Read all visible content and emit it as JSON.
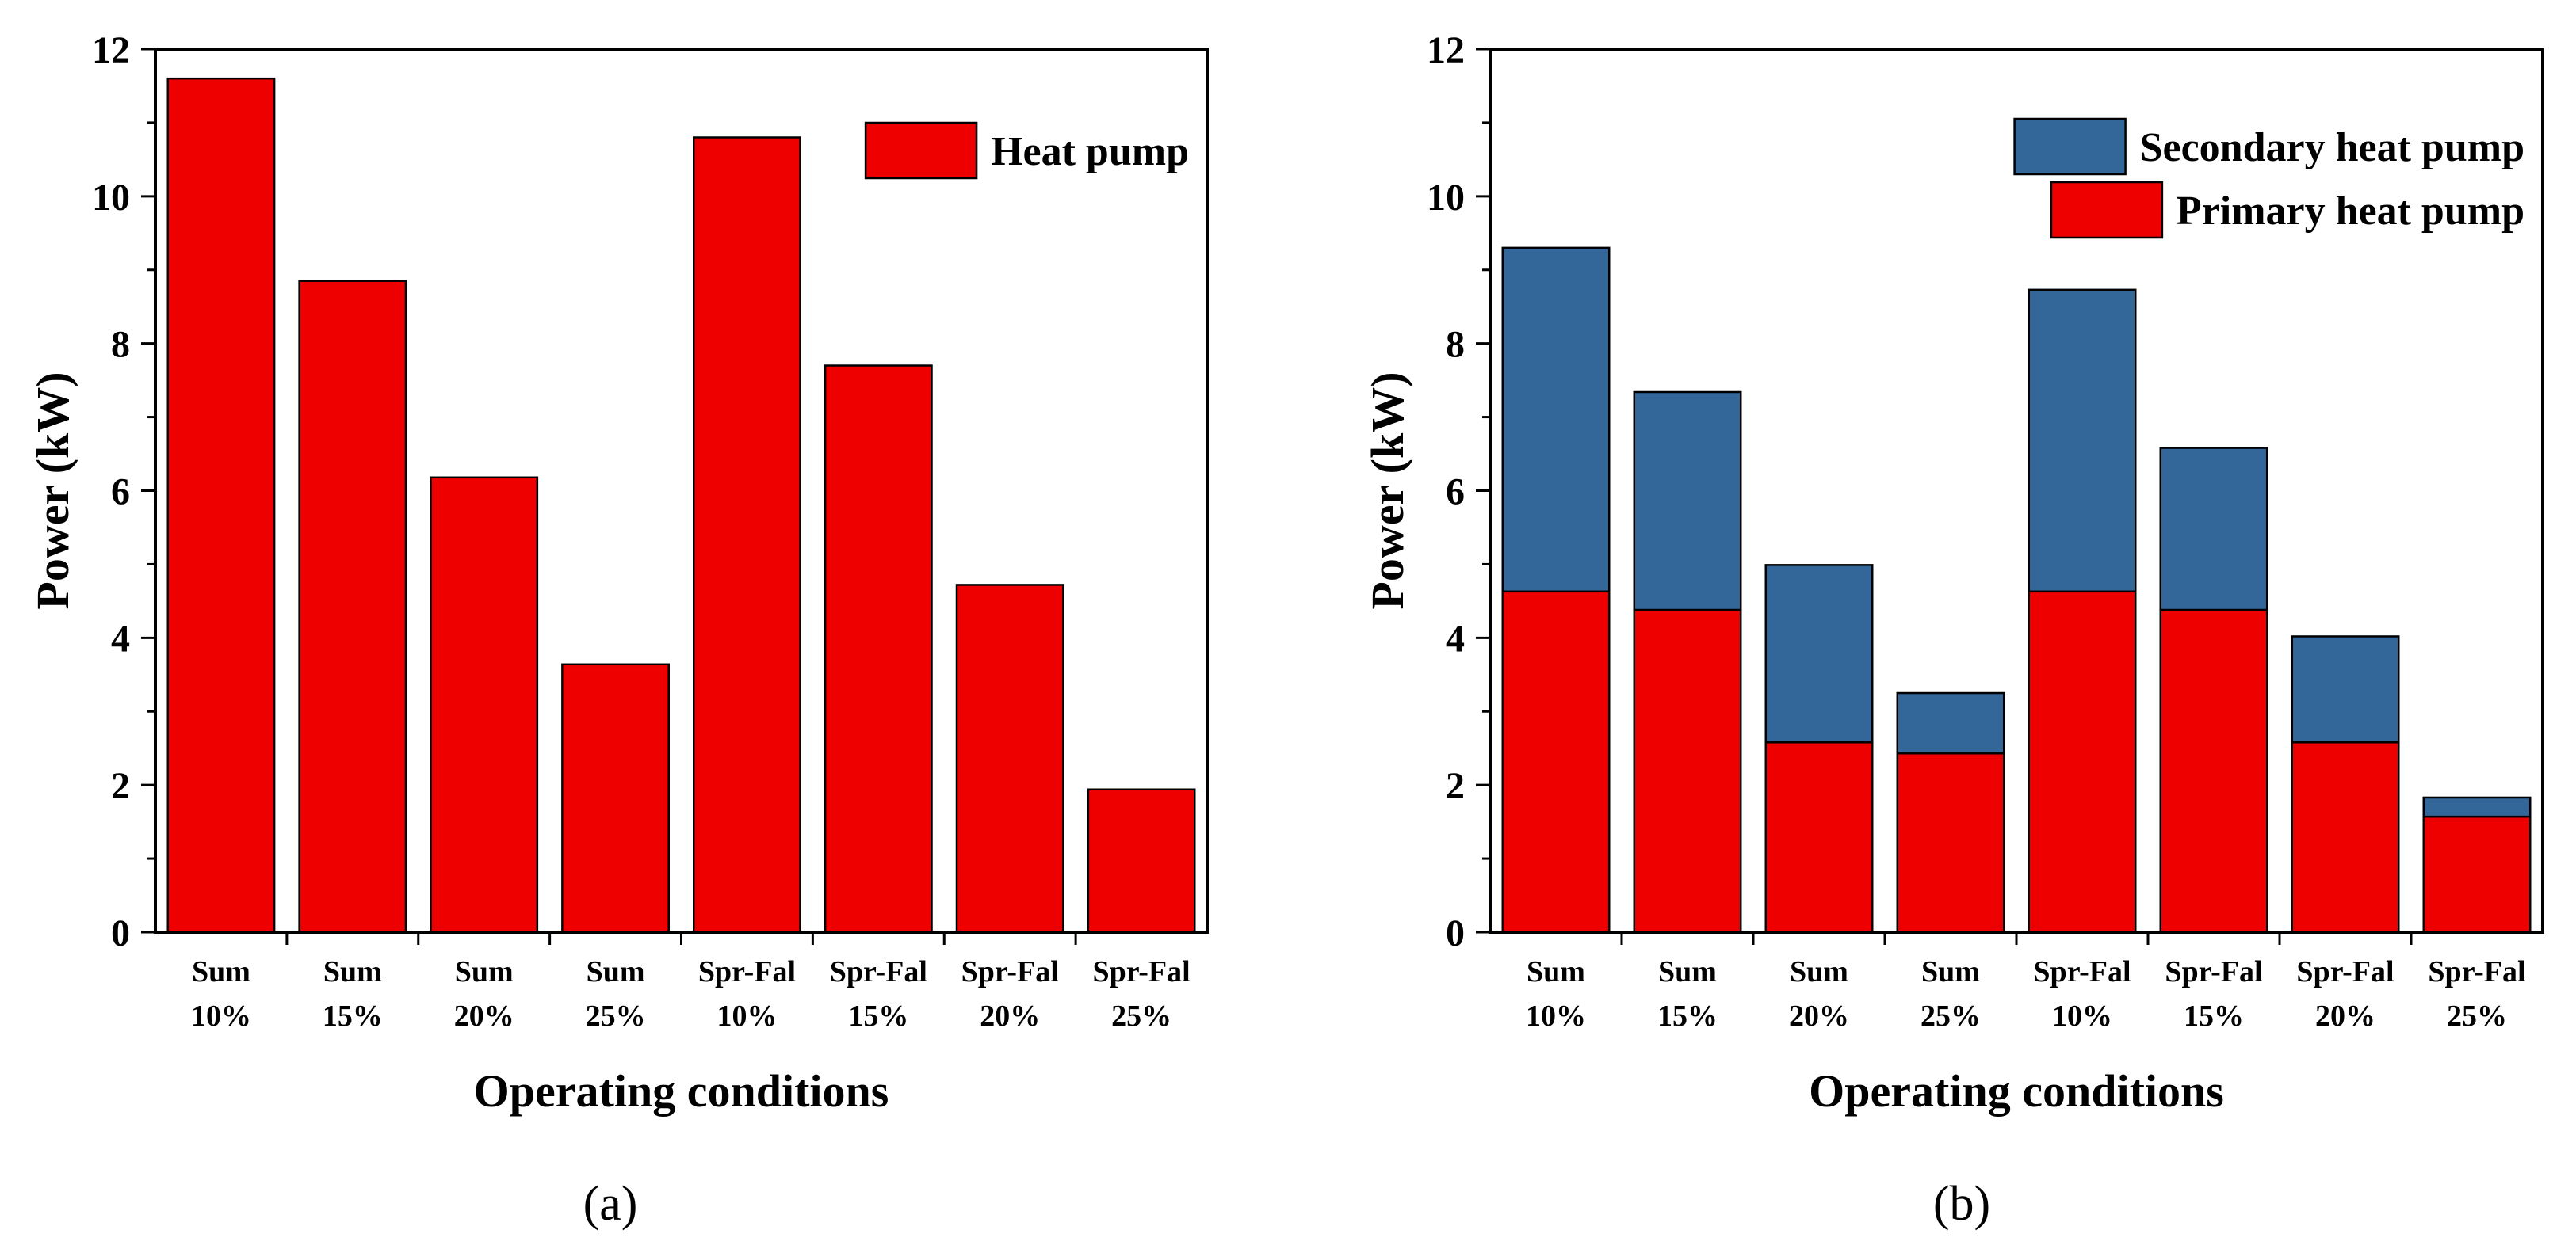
{
  "chart_data": [
    {
      "id": "a",
      "type": "bar",
      "caption": "(a)",
      "xlabel": "Operating conditions",
      "ylabel": "Power (kW)",
      "ylim": [
        0,
        12
      ],
      "yticks": [
        "0",
        "2",
        "4",
        "6",
        "8",
        "10",
        "12"
      ],
      "categories": [
        [
          "Sum",
          "10%"
        ],
        [
          "Sum",
          "15%"
        ],
        [
          "Sum",
          "20%"
        ],
        [
          "Sum",
          "25%"
        ],
        [
          "Spr-Fal",
          "10%"
        ],
        [
          "Spr-Fal",
          "15%"
        ],
        [
          "Spr-Fal",
          "20%"
        ],
        [
          "Spr-Fal",
          "25%"
        ]
      ],
      "series": [
        {
          "name": "Heat pump",
          "color": "#ee0000",
          "values": [
            11.6,
            8.85,
            6.18,
            3.64,
            10.8,
            7.7,
            4.72,
            1.94
          ]
        }
      ],
      "legend": "top-right"
    },
    {
      "id": "b",
      "type": "bar",
      "stacked": true,
      "caption": "(b)",
      "xlabel": "Operating conditions",
      "ylabel": "Power (kW)",
      "ylim": [
        0,
        12
      ],
      "yticks": [
        "0",
        "2",
        "4",
        "6",
        "8",
        "10",
        "12"
      ],
      "categories": [
        [
          "Sum",
          "10%"
        ],
        [
          "Sum",
          "15%"
        ],
        [
          "Sum",
          "20%"
        ],
        [
          "Sum",
          "25%"
        ],
        [
          "Spr-Fal",
          "10%"
        ],
        [
          "Spr-Fal",
          "15%"
        ],
        [
          "Spr-Fal",
          "20%"
        ],
        [
          "Spr-Fal",
          "25%"
        ]
      ],
      "series": [
        {
          "name": "Primary heat pump",
          "color": "#ee0000",
          "values": [
            4.63,
            4.38,
            2.58,
            2.43,
            4.63,
            4.38,
            2.58,
            1.57
          ]
        },
        {
          "name": "Secondary heat pump",
          "color": "#336699",
          "values": [
            4.67,
            2.96,
            2.41,
            0.82,
            4.1,
            2.2,
            1.44,
            0.26
          ]
        }
      ],
      "legend_order": [
        "Secondary heat pump",
        "Primary heat pump"
      ],
      "legend": "top-right"
    }
  ]
}
